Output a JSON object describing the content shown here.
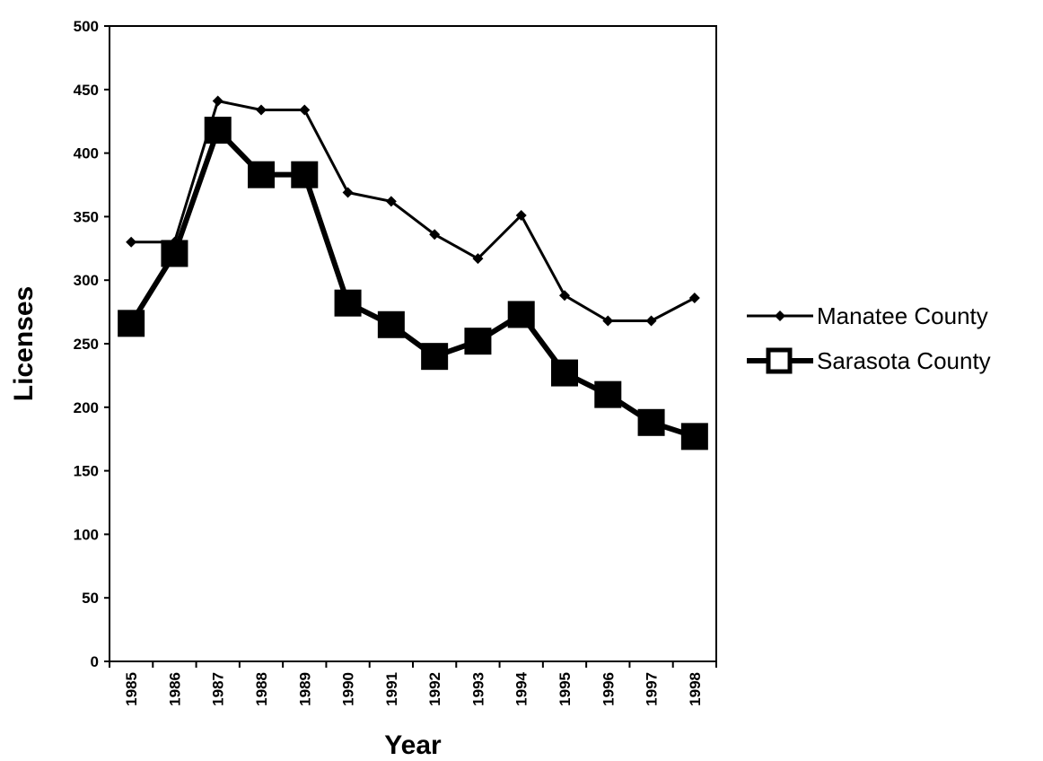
{
  "chart_data": {
    "type": "line",
    "xlabel": "Year",
    "ylabel": "Licenses",
    "categories": [
      "1985",
      "1986",
      "1987",
      "1988",
      "1989",
      "1990",
      "1991",
      "1992",
      "1993",
      "1994",
      "1995",
      "1996",
      "1997",
      "1998"
    ],
    "series": [
      {
        "name": "Manatee County",
        "color": "#000000",
        "marker": "diamond",
        "values": [
          330,
          330,
          441,
          434,
          434,
          369,
          362,
          336,
          317,
          351,
          288,
          268,
          268,
          286
        ]
      },
      {
        "name": "Sarasota County",
        "color": "#000000",
        "marker": "square",
        "values": [
          266,
          321,
          418,
          383,
          383,
          282,
          265,
          240,
          252,
          273,
          227,
          210,
          188,
          177
        ]
      }
    ],
    "ylim": [
      0,
      500
    ],
    "yticks": [
      0,
      50,
      100,
      150,
      200,
      250,
      300,
      350,
      400,
      450,
      500
    ],
    "legend": "right"
  }
}
